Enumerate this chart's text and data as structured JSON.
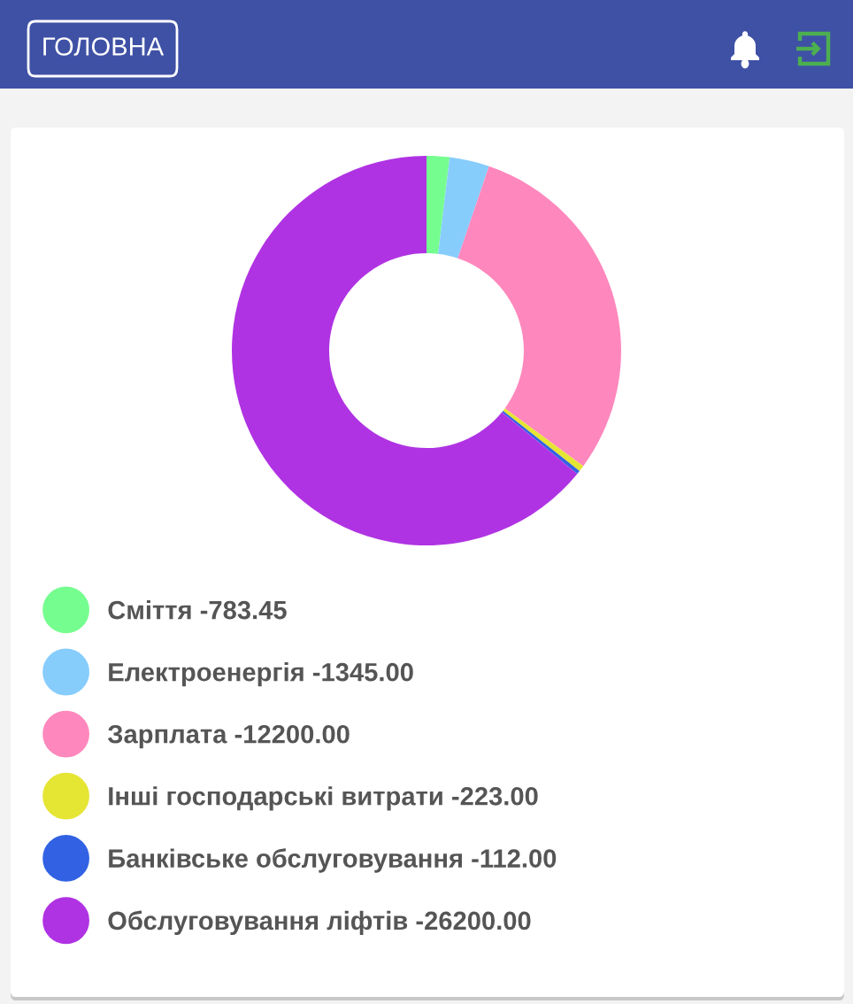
{
  "chart_data": {
    "type": "donut",
    "categories": [
      "Сміття -783.45",
      "Електроенергія -1345.00",
      "Зарплата -12200.00",
      "Інші господарські витрати -223.00",
      "Банківське обслуговування -112.00",
      "Обслуговування ліфтів -26200.00"
    ],
    "values": [
      1.9,
      3.3,
      29.9,
      0.5,
      0.3,
      64.1
    ],
    "colors": [
      "#76fd90",
      "#87cdfc",
      "#fe88bd",
      "#e5e533",
      "#3262e3",
      "#b033e3"
    ],
    "legend": "bottom",
    "annotations": [
      "ГОЛОВНА"
    ]
  }
}
